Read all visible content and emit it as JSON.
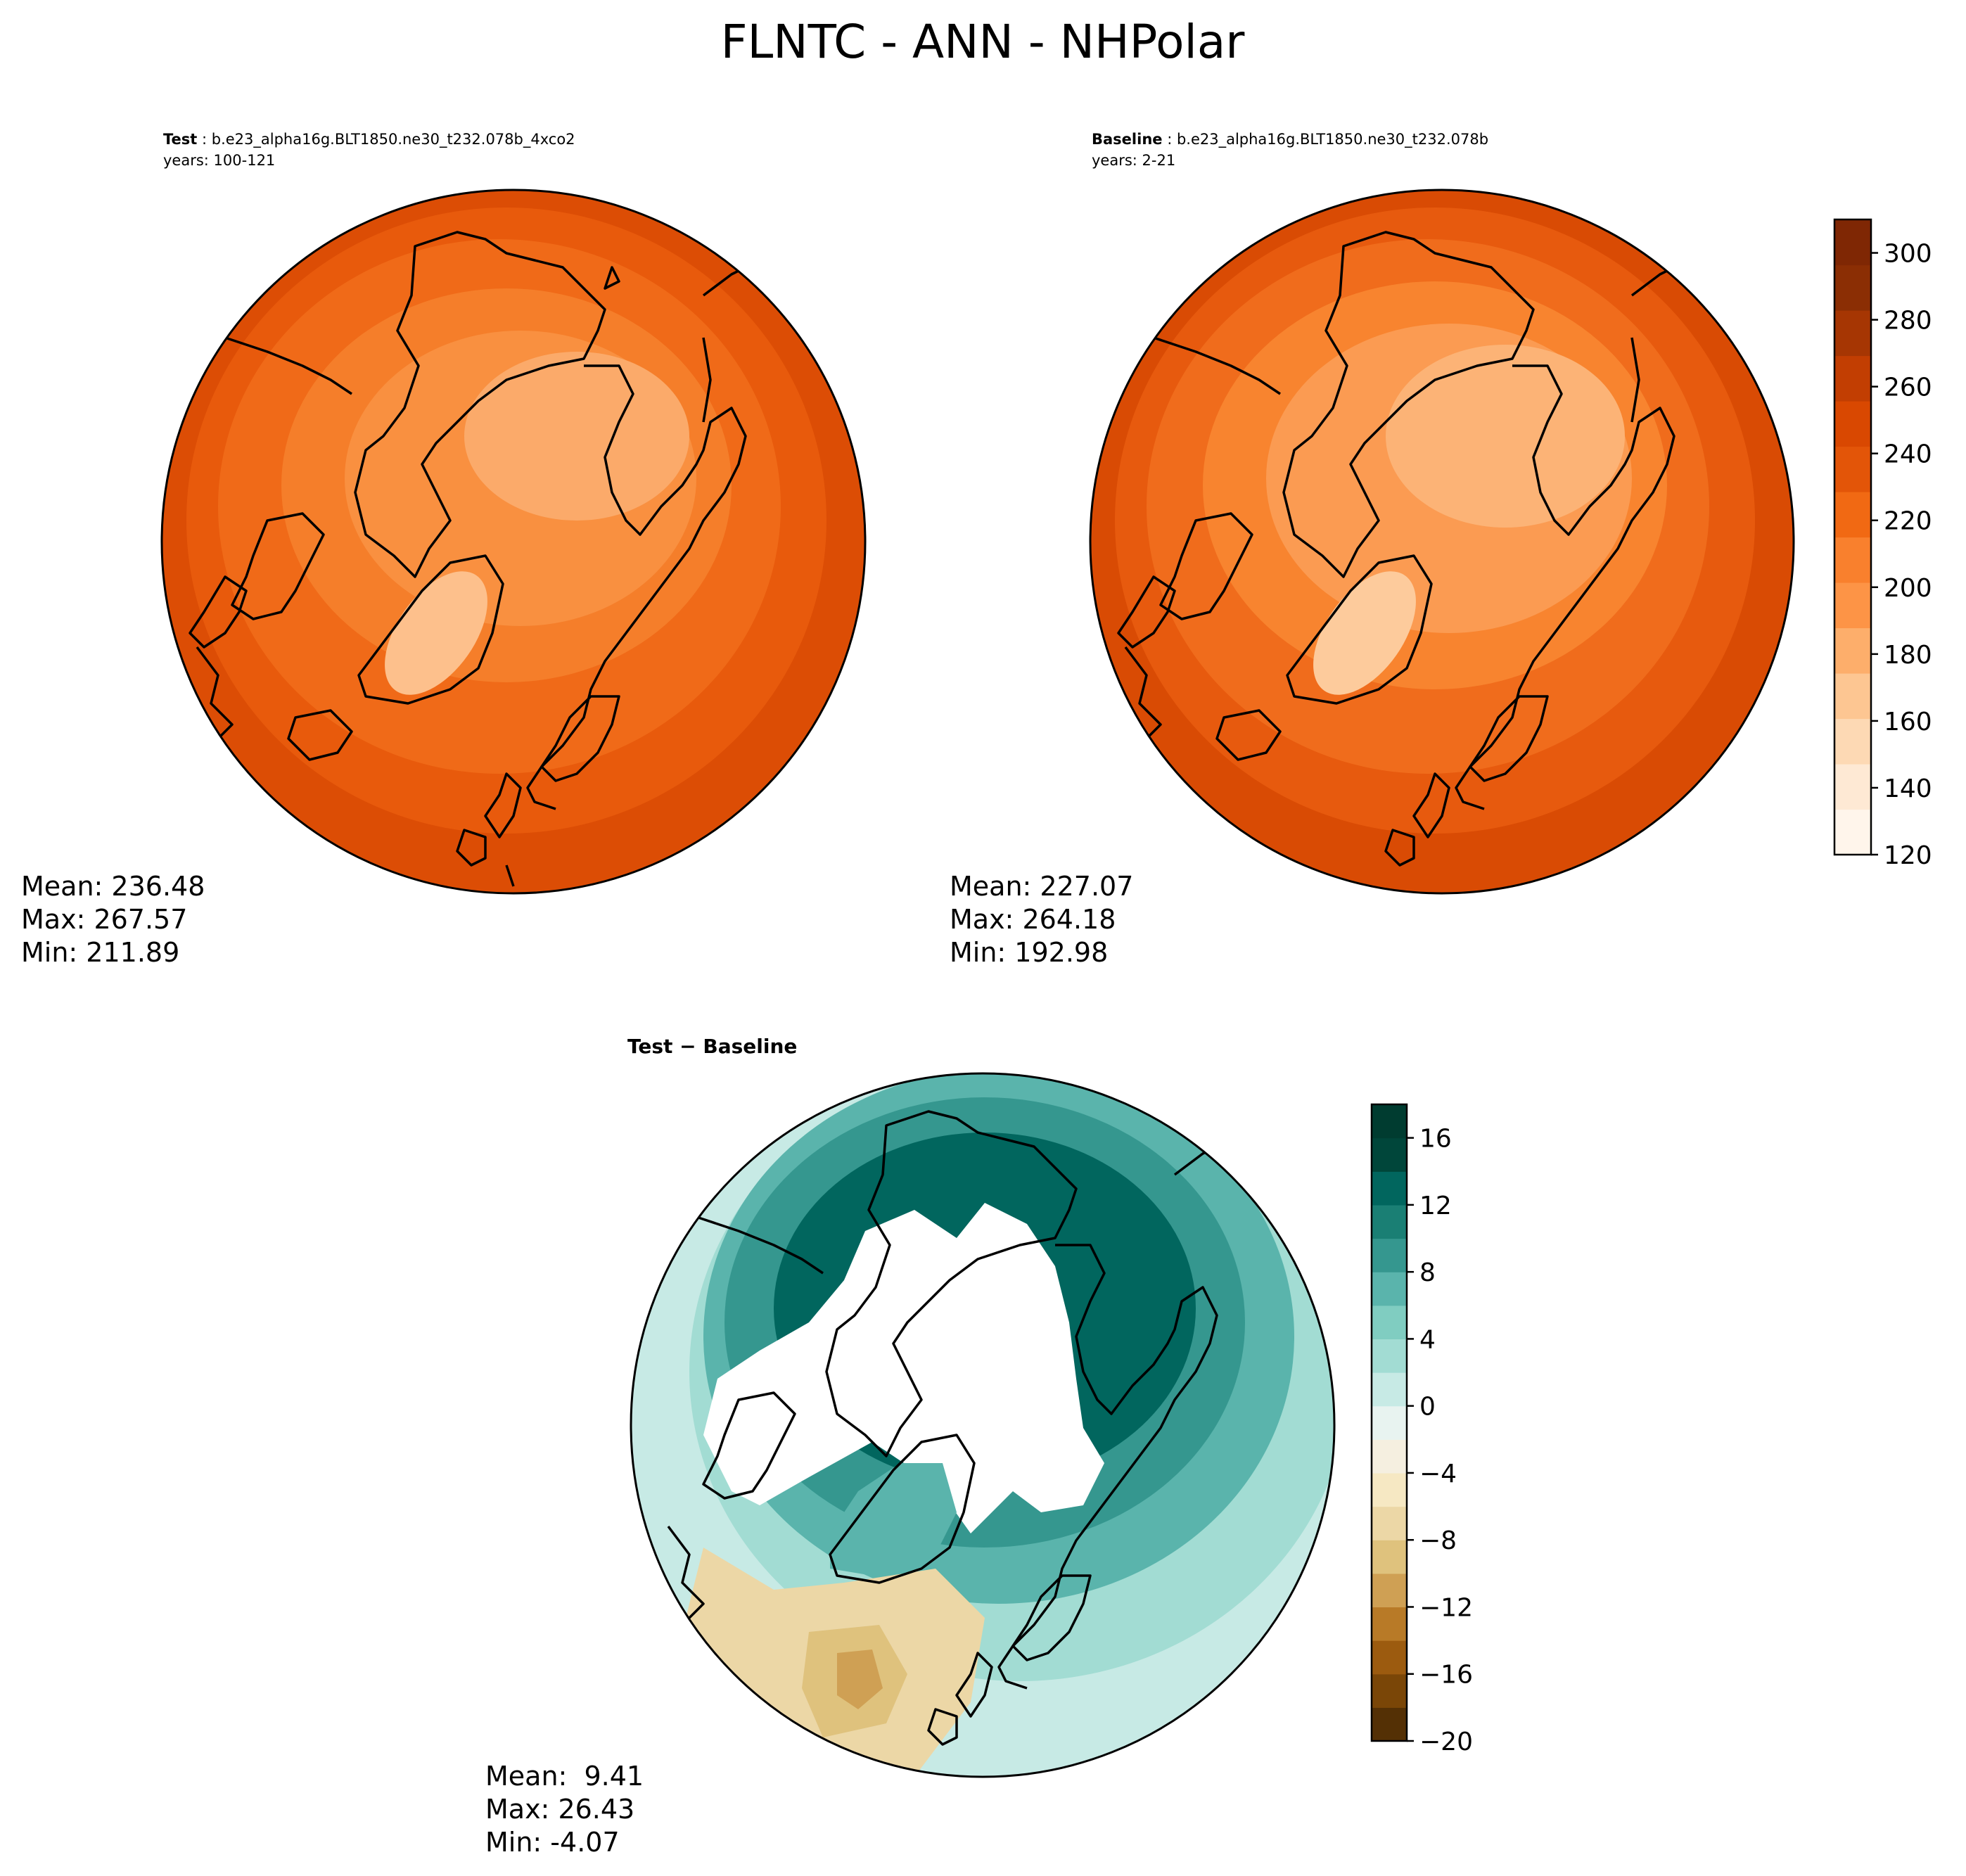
{
  "figure": {
    "title": "FLNTC - ANN - NHPolar"
  },
  "panels": {
    "test": {
      "label_bold": "Test",
      "label_rest": " : b.e23_alpha16g.BLT1850.ne30_t232.078b_4xco2",
      "years": "years: 100-121",
      "stats": {
        "mean": "Mean: 236.48",
        "max": "Max: 267.57",
        "min": "Min: 211.89"
      }
    },
    "baseline": {
      "label_bold": "Baseline",
      "label_rest": " : b.e23_alpha16g.BLT1850.ne30_t232.078b",
      "years": "years: 2-21",
      "stats": {
        "mean": "Mean: 227.07",
        "max": "Max: 264.18",
        "min": "Min: 192.98"
      }
    },
    "diff": {
      "label": "Test − Baseline",
      "stats": {
        "mean": "Mean:  9.41",
        "max": "Max: 26.43",
        "min": "Min: -4.07"
      }
    }
  },
  "colorbars": {
    "main": {
      "min": 120,
      "max": 310,
      "tick_values": [
        120,
        140,
        160,
        180,
        200,
        220,
        240,
        260,
        280,
        300
      ],
      "tick_labels": [
        "120",
        "140",
        "160",
        "180",
        "200",
        "220",
        "240",
        "260",
        "280",
        "300"
      ],
      "colors": [
        "#fff5eb",
        "#fee9d4",
        "#fdd9b4",
        "#fdc692",
        "#fdae6b",
        "#fd9446",
        "#f9802d",
        "#f16913",
        "#e35508",
        "#d94801",
        "#c23e02",
        "#a63603",
        "#8b2e04",
        "#7f2704"
      ]
    },
    "diff": {
      "min": -20,
      "max": 18,
      "tick_values": [
        -20,
        -16,
        -12,
        -8,
        -4,
        0,
        4,
        8,
        12,
        16
      ],
      "tick_labels": [
        "−20",
        "−16",
        "−12",
        "−8",
        "−4",
        "0",
        "4",
        "8",
        "12",
        "16"
      ],
      "colors": [
        "#543005",
        "#7a4607",
        "#9c5b0f",
        "#b87a27",
        "#cfa054",
        "#dfc27d",
        "#ecd7a6",
        "#f6e8c3",
        "#f5efe0",
        "#e8f3f0",
        "#c7eae5",
        "#a2dcd3",
        "#80cdc1",
        "#5ab4ac",
        "#35978f",
        "#1a7f74",
        "#01665e",
        "#00463a",
        "#003c30"
      ]
    }
  },
  "map_colors": {
    "test": {
      "outer": "#dc4d05",
      "ring2": "#e85a0c",
      "ring3": "#f06a18",
      "ring4": "#f57e2a",
      "ring5": "#f99040",
      "inner": "#fbaa6a",
      "greenland": "#fdc08c"
    },
    "baseline": {
      "outer": "#d94b04",
      "ring2": "#e75a0e",
      "ring3": "#f06c1c",
      "ring4": "#f8842f",
      "ring5": "#fb9b52",
      "inner": "#fcb376",
      "greenland": "#fdcb9c"
    },
    "diff": {
      "outer": "#5ab4ac",
      "teal2": "#35978f",
      "teal3": "#01665e",
      "light": "#a2dcd3",
      "pale": "#c7eae5",
      "tan": "#ecd7a6",
      "tan2": "#dfc27d",
      "tan3": "#cfa054",
      "white": "#ffffff"
    }
  }
}
